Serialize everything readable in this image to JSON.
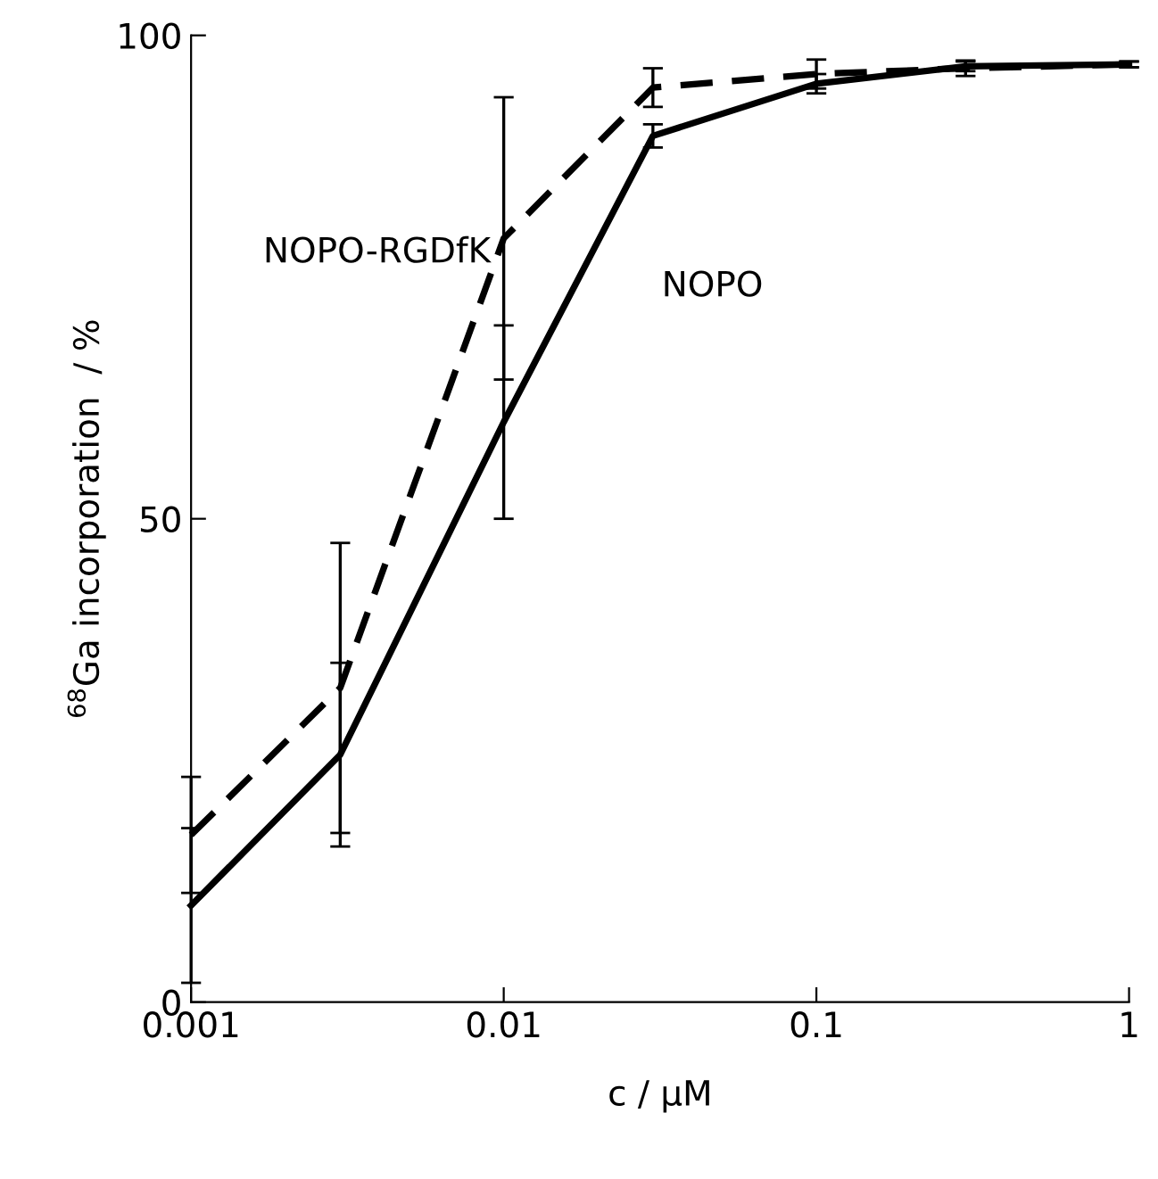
{
  "chart_data": {
    "type": "line",
    "xlabel": "c / μM",
    "ylabel": "$^{68}$Ga incorporation  / %",
    "log": "x",
    "xlim": [
      0.001,
      1
    ],
    "xticks": [
      {
        "value": 0.001,
        "label": "0.001"
      },
      {
        "value": 0.01,
        "label": "0.01"
      },
      {
        "value": 0.1,
        "label": "0.1"
      },
      {
        "value": 1,
        "label": "1"
      }
    ],
    "ylim": [
      0,
      100
    ],
    "yticks": [
      0,
      50,
      100
    ],
    "grid": false,
    "legend": false,
    "marker": "none",
    "x": [
      0.001,
      0.003,
      0.01,
      0.03,
      0.1,
      0.3,
      1
    ],
    "series": [
      {
        "name": "NOPO",
        "color": "#000000",
        "line_style": "solid",
        "values": [
          10,
          25.6,
          60,
          89.6,
          95,
          96.8,
          97
        ],
        "errors": [
          8,
          9.5,
          10,
          1.2,
          1,
          0.5,
          0.3
        ]
      },
      {
        "name": "NOPO-RGDfK",
        "color": "#000000",
        "line_style": "dashed",
        "values": [
          17.3,
          32.5,
          79,
          94.6,
          96,
          96.6,
          97
        ],
        "errors": [
          6,
          15,
          14.6,
          2,
          1.5,
          0.8,
          0.3
        ]
      }
    ]
  }
}
